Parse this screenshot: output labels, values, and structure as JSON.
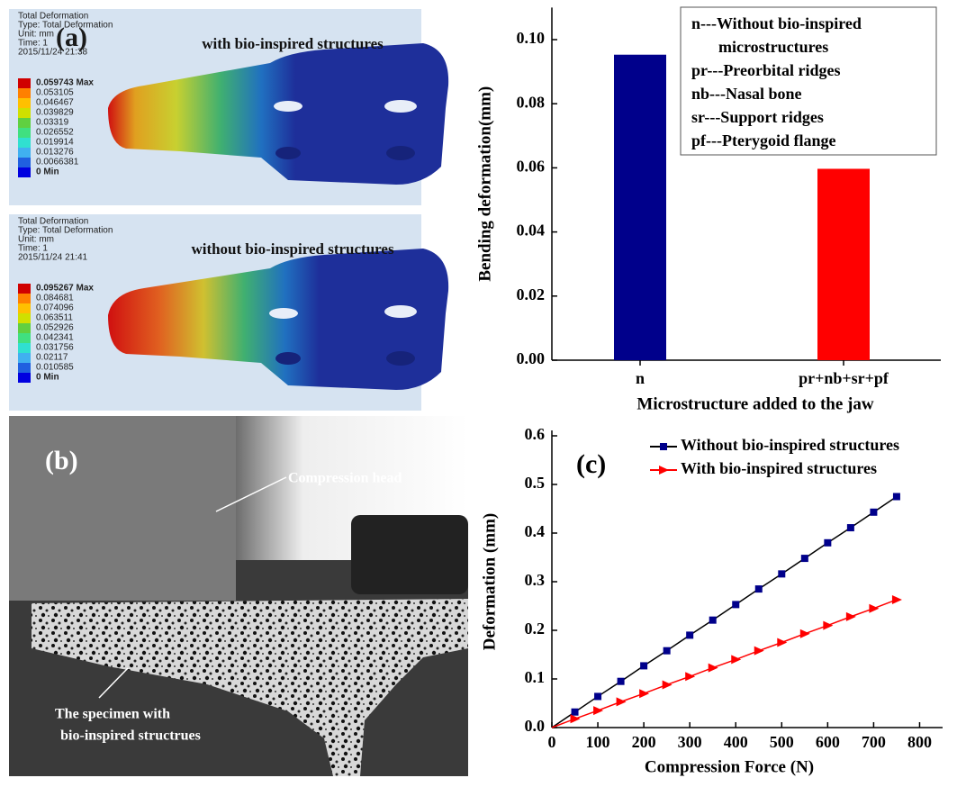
{
  "panel_a": {
    "label": "(a)",
    "models": [
      {
        "header": [
          "Total Deformation",
          "Type: Total Deformation",
          "Unit: mm",
          "Time: 1",
          "2015/11/24 21:38"
        ],
        "legend": [
          "0.059743 Max",
          "0.053105",
          "0.046467",
          "0.039829",
          "0.03319",
          "0.026552",
          "0.019914",
          "0.013276",
          "0.0066381",
          "0 Min"
        ],
        "caption": "with bio-inspired structures"
      },
      {
        "header": [
          "Total Deformation",
          "Type: Total Deformation",
          "Unit: mm",
          "Time: 1",
          "2015/11/24 21:41"
        ],
        "legend": [
          "0.095267 Max",
          "0.084681",
          "0.074096",
          "0.063511",
          "0.052926",
          "0.042341",
          "0.031756",
          "0.02117",
          "0.010585",
          "0 Min"
        ],
        "caption": "without bio-inspired structures"
      }
    ]
  },
  "panel_b": {
    "label": "(b)",
    "annotations": [
      "Compression head",
      "The specimen with",
      "bio-inspired structrues"
    ]
  },
  "chart_data": [
    {
      "type": "bar",
      "y_label": "Bending deformation(mm)",
      "x_label": "Microstructure added to the jaw",
      "categories": [
        "n",
        "pr+nb+sr+pf"
      ],
      "values": [
        0.0953,
        0.0597
      ],
      "colors": [
        "#00008b",
        "#ff0000"
      ],
      "ylim": [
        0,
        0.11
      ],
      "yticks": [
        {
          "value": 0,
          "label": "0.00"
        },
        {
          "value": 0.02,
          "label": "0.02"
        },
        {
          "value": 0.04,
          "label": "0.04"
        },
        {
          "value": 0.06,
          "label": "0.06"
        },
        {
          "value": 0.08,
          "label": "0.08"
        },
        {
          "value": 0.1,
          "label": "0.10"
        }
      ],
      "notes": [
        "n---Without bio-inspired",
        "microstructures",
        "pr---Preorbital ridges",
        "nb---Nasal bone",
        "sr---Support ridges",
        "pf---Pterygoid flange"
      ]
    },
    {
      "type": "line",
      "annotation": "(c)",
      "x_label": "Compression Force (N)",
      "y_label": "Deformation (mm)",
      "x": [
        0,
        50,
        100,
        150,
        200,
        250,
        300,
        350,
        400,
        450,
        500,
        550,
        600,
        650,
        700,
        750
      ],
      "series": [
        {
          "name": "Without bio-inspired structures",
          "color": "#00008b",
          "marker": "square",
          "values": [
            0,
            0.032,
            0.064,
            0.095,
            0.127,
            0.158,
            0.19,
            0.221,
            0.253,
            0.285,
            0.316,
            0.348,
            0.38,
            0.411,
            0.443,
            0.475
          ]
        },
        {
          "name": "With bio-inspired structures",
          "color": "#ff0000",
          "marker": "triangle",
          "values": [
            0,
            0.018,
            0.035,
            0.053,
            0.07,
            0.088,
            0.105,
            0.123,
            0.14,
            0.158,
            0.175,
            0.193,
            0.21,
            0.228,
            0.245,
            0.263
          ]
        }
      ],
      "xlim": [
        0,
        850
      ],
      "xticks": [
        0,
        100,
        200,
        300,
        400,
        500,
        600,
        700,
        800
      ],
      "ylim": [
        0,
        0.6
      ],
      "yticks": [
        {
          "value": 0,
          "label": "0.0"
        },
        {
          "value": 0.1,
          "label": "0.1"
        },
        {
          "value": 0.2,
          "label": "0.2"
        },
        {
          "value": 0.3,
          "label": "0.3"
        },
        {
          "value": 0.4,
          "label": "0.4"
        },
        {
          "value": 0.5,
          "label": "0.5"
        },
        {
          "value": 0.6,
          "label": "0.6"
        }
      ]
    }
  ]
}
